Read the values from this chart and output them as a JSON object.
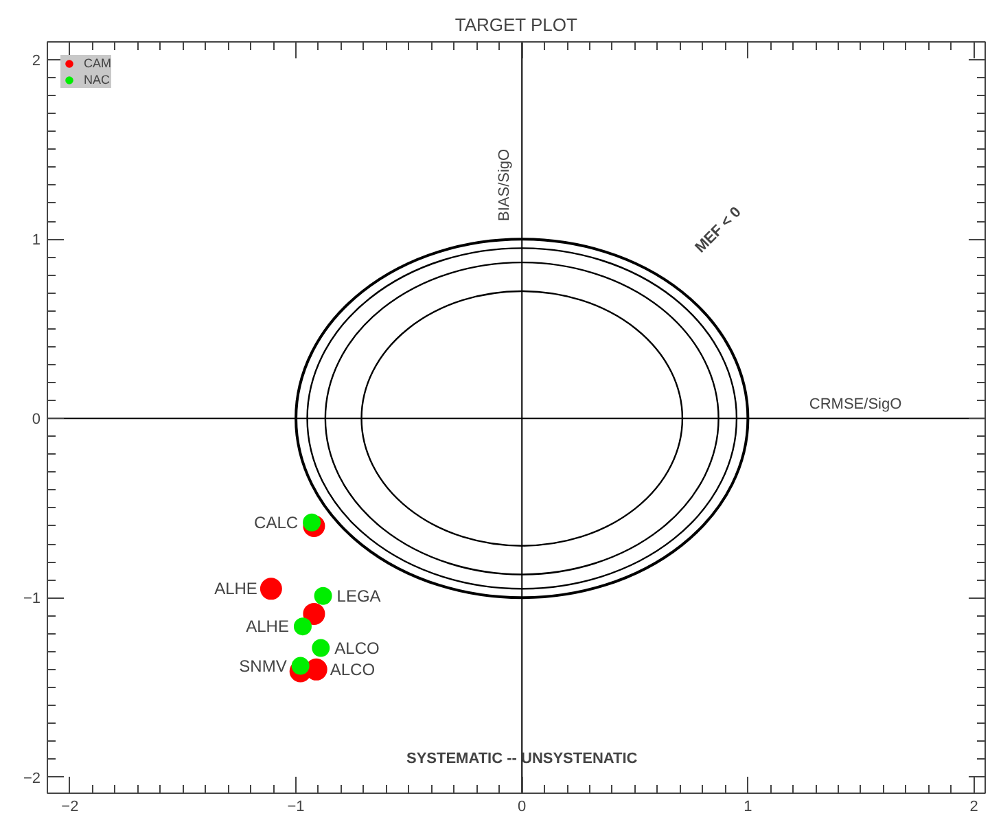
{
  "chart_data": {
    "type": "scatter",
    "title": "TARGET PLOT",
    "xlabel": "CRMSE/SigO",
    "ylabel": "BIAS/SigO",
    "xlim": [
      -2.1,
      2.05
    ],
    "ylim": [
      -2.09,
      2.1
    ],
    "xticks": [
      {
        "value": -2,
        "label": "−2"
      },
      {
        "value": -1,
        "label": "−1"
      },
      0,
      1,
      2
    ],
    "yticks": [
      {
        "value": -2,
        "label": "−2"
      },
      {
        "value": -1,
        "label": "−1"
      },
      0,
      1,
      2
    ],
    "grid": false,
    "legend": "top left",
    "marker": "circle",
    "ref_lines": [
      {
        "axis": "x",
        "value": 0,
        "color": "#000000"
      },
      {
        "axis": "y",
        "value": 0,
        "color": "#000000"
      }
    ],
    "annotations": [
      {
        "text": "CALC",
        "x": -0.93,
        "y": -0.58
      },
      {
        "text": "ALHE",
        "x": -1.11,
        "y": -0.95
      },
      {
        "text": "LEGA",
        "x": -0.88,
        "y": -0.99
      },
      {
        "text": "ALHE",
        "x": -0.97,
        "y": -1.16
      },
      {
        "text": "ALCO",
        "x": -0.89,
        "y": -1.28
      },
      {
        "text": "SNMV",
        "x": -0.98,
        "y": -1.38
      },
      {
        "text": "ALCO",
        "x": -0.91,
        "y": -1.4
      },
      "MEF < 0",
      "SYSTEMATIC -- UNSYSTENATIC"
    ],
    "series": [
      {
        "name": "CAM",
        "color": "#ff0000",
        "x": [
          -0.92,
          -1.11,
          -0.92,
          -0.98,
          -0.91
        ],
        "values": [
          -0.6,
          -0.95,
          -1.09,
          -1.41,
          -1.4
        ]
      },
      {
        "name": "NAC",
        "color": "#00ee00",
        "x": [
          -0.93,
          -0.88,
          -0.97,
          -0.89,
          -0.98
        ],
        "values": [
          -0.58,
          -0.99,
          -1.16,
          -1.28,
          -1.38
        ]
      }
    ]
  }
}
